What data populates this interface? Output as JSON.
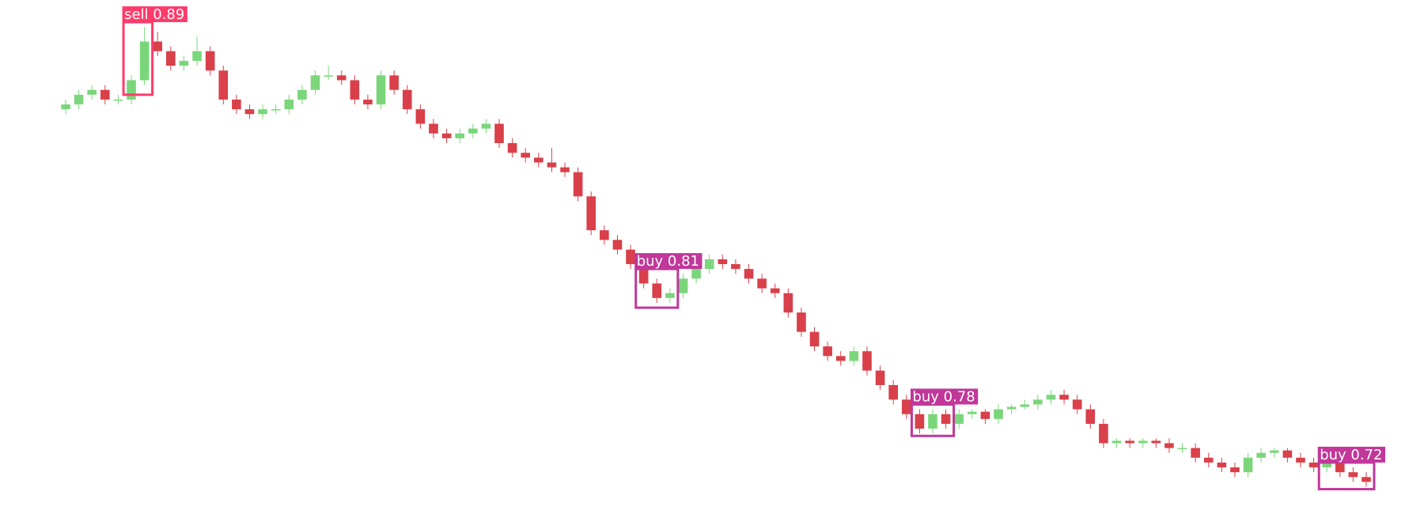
{
  "chart_data": {
    "type": "candlestick",
    "up_color": "#7bd67b",
    "down_color": "#d9404a",
    "ylim": [
      0,
      100
    ],
    "ohlc": [
      [
        82,
        84,
        81,
        83
      ],
      [
        83,
        86,
        82,
        85
      ],
      [
        85,
        87,
        84,
        86
      ],
      [
        86,
        87,
        83,
        84
      ],
      [
        84,
        85,
        83,
        84
      ],
      [
        84,
        89,
        83,
        88
      ],
      [
        88,
        99,
        87,
        96
      ],
      [
        96,
        98,
        93,
        94
      ],
      [
        94,
        95,
        90,
        91
      ],
      [
        91,
        93,
        90,
        92
      ],
      [
        92,
        97,
        91,
        94
      ],
      [
        94,
        95,
        89,
        90
      ],
      [
        90,
        91,
        83,
        84
      ],
      [
        84,
        85,
        81,
        82
      ],
      [
        82,
        83,
        80,
        81
      ],
      [
        81,
        83,
        80,
        82
      ],
      [
        82,
        83,
        81,
        82
      ],
      [
        82,
        85,
        81,
        84
      ],
      [
        84,
        87,
        83,
        86
      ],
      [
        86,
        90,
        85,
        89
      ],
      [
        89,
        91,
        88,
        89
      ],
      [
        89,
        90,
        87,
        88
      ],
      [
        88,
        89,
        83,
        84
      ],
      [
        84,
        85,
        82,
        83
      ],
      [
        83,
        90,
        82,
        89
      ],
      [
        89,
        90,
        85,
        86
      ],
      [
        86,
        87,
        81,
        82
      ],
      [
        82,
        83,
        78,
        79
      ],
      [
        79,
        80,
        76,
        77
      ],
      [
        77,
        78,
        75,
        76
      ],
      [
        76,
        78,
        75,
        77
      ],
      [
        77,
        79,
        76,
        78
      ],
      [
        78,
        80,
        77,
        79
      ],
      [
        79,
        80,
        74,
        75
      ],
      [
        75,
        76,
        72,
        73
      ],
      [
        73,
        74,
        71,
        72
      ],
      [
        72,
        73,
        70,
        71
      ],
      [
        71,
        74,
        69,
        70
      ],
      [
        70,
        71,
        68,
        69
      ],
      [
        69,
        70,
        63,
        64
      ],
      [
        64,
        65,
        56,
        57
      ],
      [
        57,
        58,
        54,
        55
      ],
      [
        55,
        56,
        52,
        53
      ],
      [
        53,
        54,
        49,
        50
      ],
      [
        50,
        51,
        45,
        46
      ],
      [
        46,
        47,
        42,
        43
      ],
      [
        43,
        45,
        42,
        44
      ],
      [
        44,
        48,
        43,
        47
      ],
      [
        47,
        50,
        46,
        49
      ],
      [
        49,
        52,
        48,
        51
      ],
      [
        51,
        52,
        49,
        50
      ],
      [
        50,
        51,
        48,
        49
      ],
      [
        49,
        50,
        46,
        47
      ],
      [
        47,
        48,
        44,
        45
      ],
      [
        45,
        46,
        43,
        44
      ],
      [
        44,
        45,
        39,
        40
      ],
      [
        40,
        41,
        35,
        36
      ],
      [
        36,
        37,
        32,
        33
      ],
      [
        33,
        34,
        30,
        31
      ],
      [
        31,
        32,
        29,
        30
      ],
      [
        30,
        33,
        29,
        32
      ],
      [
        32,
        33,
        27,
        28
      ],
      [
        28,
        29,
        24,
        25
      ],
      [
        25,
        26,
        21,
        22
      ],
      [
        22,
        23,
        18,
        19
      ],
      [
        19,
        20,
        15,
        16
      ],
      [
        16,
        20,
        15,
        19
      ],
      [
        19,
        20,
        16,
        17
      ],
      [
        17,
        20,
        16,
        19
      ],
      [
        19,
        20,
        18,
        19.5
      ],
      [
        19.5,
        20,
        17,
        18
      ],
      [
        18,
        21,
        17,
        20
      ],
      [
        20,
        21,
        19,
        20.5
      ],
      [
        20.5,
        22,
        20,
        21
      ],
      [
        21,
        23,
        20,
        22
      ],
      [
        22,
        24,
        21,
        23
      ],
      [
        23,
        24,
        21,
        22
      ],
      [
        22,
        23,
        19,
        20
      ],
      [
        20,
        21,
        16,
        17
      ],
      [
        17,
        18,
        12,
        13
      ],
      [
        13,
        14,
        12,
        13.5
      ],
      [
        13.5,
        14,
        12,
        13
      ],
      [
        13,
        14,
        12,
        13.5
      ],
      [
        13.5,
        14,
        12,
        13
      ],
      [
        13,
        14,
        11,
        12
      ],
      [
        12,
        13,
        11,
        12
      ],
      [
        12,
        13,
        9,
        10
      ],
      [
        10,
        11,
        8,
        9
      ],
      [
        9,
        10,
        7,
        8
      ],
      [
        8,
        9,
        6,
        7
      ],
      [
        7,
        11,
        6,
        10
      ],
      [
        10,
        12,
        9,
        11
      ],
      [
        11,
        12,
        10,
        11.5
      ],
      [
        11.5,
        12,
        9,
        10
      ],
      [
        10,
        11,
        8,
        9
      ],
      [
        9,
        10,
        7,
        8
      ],
      [
        8,
        11,
        7,
        10
      ],
      [
        10,
        11,
        6,
        7
      ],
      [
        7,
        8,
        5,
        6
      ],
      [
        6,
        7,
        4,
        5
      ]
    ],
    "annotations": [
      {
        "label": "sell 0.89",
        "color": "#ff3b6b",
        "start": 5,
        "end": 6,
        "low": 85,
        "high": 100
      },
      {
        "label": "buy 0.81",
        "color": "#c1379a",
        "start": 44,
        "end": 46,
        "low": 41,
        "high": 49
      },
      {
        "label": "buy 0.78",
        "color": "#c1379a",
        "start": 65,
        "end": 67,
        "low": 14.5,
        "high": 21
      },
      {
        "label": "buy 0.72",
        "color": "#c1379a",
        "start": 96,
        "end": 99,
        "low": 3.5,
        "high": 9
      }
    ]
  }
}
